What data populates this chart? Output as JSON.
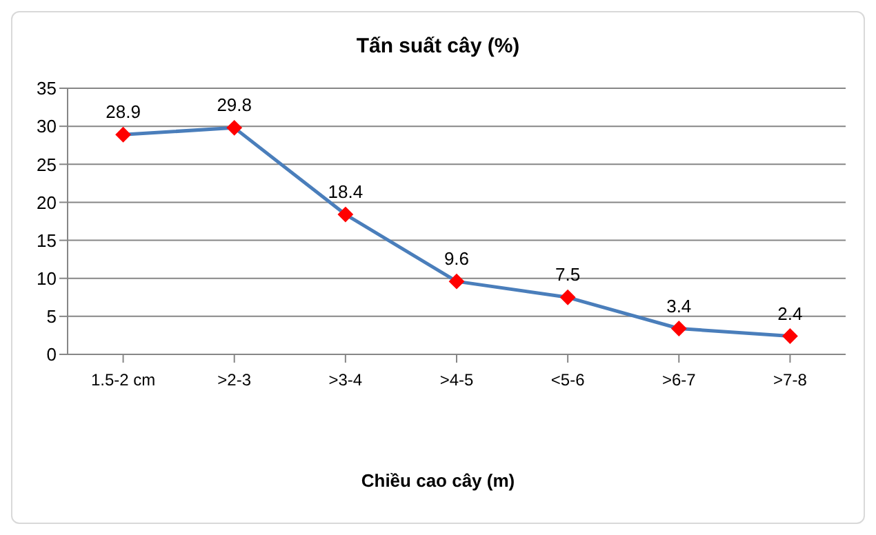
{
  "chart_data": {
    "type": "line",
    "title": "Tấn suất cây (%)",
    "xlabel": "Chiều cao cây (m)",
    "categories": [
      "1.5-2 cm",
      ">2-3",
      ">3-4",
      ">4-5",
      "<5-6",
      ">6-7",
      ">7-8"
    ],
    "series": [
      {
        "color": "#4a7ebb",
        "colors": [
          "#ff0000",
          "#ff0000",
          "#ff0000",
          "#ff0000",
          "#ff0000",
          "#ff0000",
          "#ff0000"
        ],
        "values": [
          28.9,
          29.8,
          18.4,
          9.6,
          7.5,
          3.4,
          2.4
        ]
      }
    ],
    "ylim": [
      0,
      35
    ],
    "yticks": [
      0,
      5,
      10,
      15,
      20,
      25,
      30,
      35
    ],
    "grid": "y",
    "marker": "diamond",
    "line_style": "solid",
    "data_labels": true
  }
}
